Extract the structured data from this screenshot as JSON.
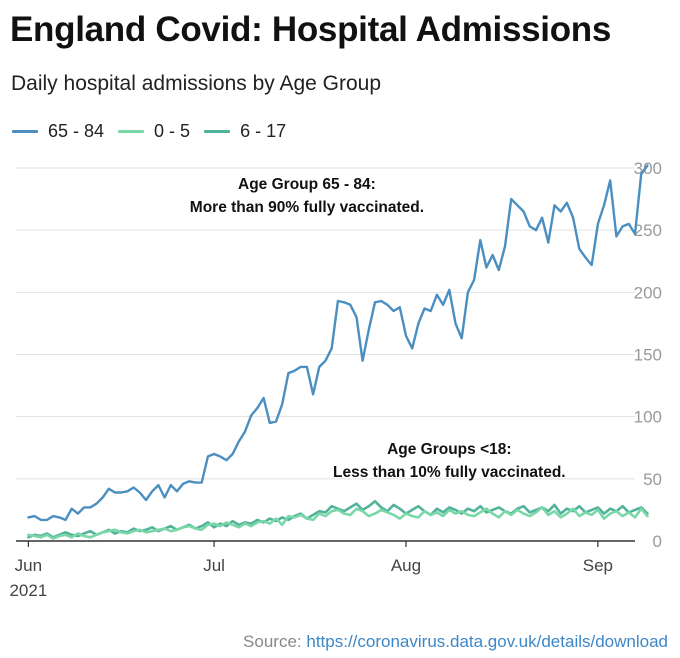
{
  "header": {
    "title": "England Covid: Hospital Admissions",
    "subtitle": "Daily hospital admissions by Age Group"
  },
  "source": {
    "label": "Source:",
    "link": "https://coronavirus.data.gov.uk/details/download"
  },
  "colors": {
    "series_65_84": "#4a8fbf",
    "series_0_5": "#7ad7a8",
    "series_6_17": "#52b39a",
    "grid": "#e2e2e2"
  },
  "chart_data": {
    "type": "line",
    "title": "England Covid: Hospital Admissions",
    "subtitle": "Daily hospital admissions by Age Group",
    "ylim": [
      0,
      300
    ],
    "y_ticks": [
      0,
      50,
      100,
      150,
      200,
      250,
      300
    ],
    "x_ticks": [
      {
        "day": 0,
        "label": "Jun",
        "sublabel": "2021"
      },
      {
        "day": 30,
        "label": "Jul",
        "sublabel": ""
      },
      {
        "day": 61,
        "label": "Aug",
        "sublabel": ""
      },
      {
        "day": 92,
        "label": "Sep",
        "sublabel": ""
      }
    ],
    "x_range": [
      -2,
      98
    ],
    "grid": true,
    "legend_position": "top-left",
    "annotations": [
      {
        "lines": [
          "Age Group 65 - 84:",
          "More than 90% fully vaccinated."
        ],
        "x": 45,
        "y": 283
      },
      {
        "lines": [
          "Age Groups <18:",
          "Less than 10% fully vaccinated."
        ],
        "x": 68,
        "y": 70
      }
    ],
    "series": [
      {
        "name": "65 - 84",
        "color": "#4a8fbf",
        "values": [
          19,
          20,
          17,
          17,
          20,
          19,
          17,
          26,
          22,
          27,
          27,
          30,
          35,
          42,
          39,
          39,
          40,
          43,
          39,
          33,
          40,
          45,
          35,
          45,
          40,
          46,
          48,
          47,
          47,
          68,
          70,
          68,
          65,
          70,
          80,
          88,
          101,
          107,
          115,
          95,
          96,
          110,
          135,
          137,
          140,
          140,
          118,
          140,
          145,
          155,
          193,
          192,
          190,
          180,
          145,
          170,
          192,
          193,
          190,
          185,
          188,
          165,
          155,
          175,
          187,
          185,
          198,
          190,
          202,
          175,
          163,
          200,
          210,
          242,
          220,
          230,
          218,
          237,
          275,
          270,
          265,
          253,
          250,
          260,
          240,
          270,
          265,
          272,
          260,
          235,
          228,
          222,
          255,
          270,
          290,
          245,
          253,
          255,
          247,
          295,
          302
        ]
      },
      {
        "name": "0 - 5",
        "color": "#7ad7a8",
        "values": [
          5,
          4,
          3,
          5,
          2,
          4,
          5,
          3,
          6,
          4,
          3,
          5,
          7,
          8,
          9,
          7,
          6,
          8,
          9,
          7,
          8,
          9,
          10,
          8,
          9,
          11,
          12,
          10,
          9,
          13,
          14,
          12,
          15,
          13,
          11,
          14,
          12,
          15,
          16,
          14,
          18,
          13,
          20,
          19,
          21,
          18,
          17,
          22,
          20,
          24,
          25,
          22,
          21,
          26,
          24,
          20,
          22,
          25,
          23,
          21,
          18,
          22,
          20,
          19,
          24,
          21,
          23,
          20,
          25,
          22,
          24,
          21,
          20,
          23,
          26,
          22,
          19,
          24,
          21,
          25,
          22,
          20,
          23,
          27,
          21,
          24,
          19,
          22,
          26,
          20,
          23,
          21,
          25,
          18,
          22,
          24,
          20,
          23,
          19,
          26,
          20
        ]
      },
      {
        "name": "6 - 17",
        "color": "#52b39a",
        "values": [
          3,
          5,
          4,
          6,
          3,
          5,
          7,
          5,
          4,
          6,
          8,
          5,
          7,
          9,
          6,
          8,
          7,
          10,
          8,
          9,
          11,
          8,
          10,
          12,
          9,
          11,
          13,
          10,
          12,
          15,
          11,
          14,
          12,
          16,
          13,
          15,
          14,
          17,
          15,
          18,
          16,
          19,
          17,
          20,
          22,
          18,
          21,
          24,
          23,
          28,
          26,
          24,
          27,
          30,
          25,
          28,
          32,
          27,
          24,
          29,
          26,
          22,
          25,
          28,
          24,
          21,
          26,
          23,
          27,
          25,
          22,
          26,
          24,
          28,
          23,
          25,
          27,
          24,
          22,
          26,
          28,
          23,
          25,
          27,
          24,
          29,
          22,
          26,
          24,
          28,
          23,
          25,
          27,
          22,
          26,
          24,
          28,
          23,
          25,
          27,
          22
        ]
      }
    ]
  }
}
